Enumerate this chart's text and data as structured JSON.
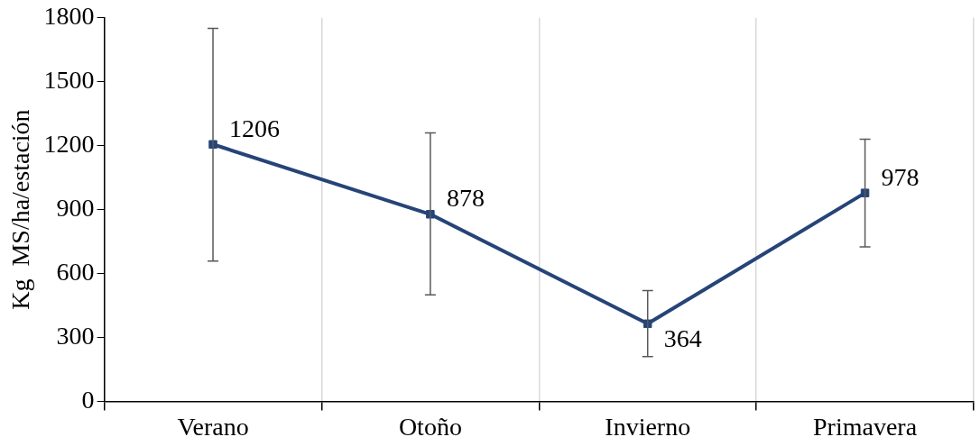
{
  "chart_data": {
    "type": "line",
    "ylabel": "Kg  MS/ha/estación",
    "categories": [
      "Verano",
      "Otoño",
      "Invierno",
      "Primavera"
    ],
    "series": [
      {
        "color": "#264478",
        "values": [
          1206,
          878,
          364,
          978
        ],
        "errors": [
          [
            658,
            1750
          ],
          [
            500,
            1260
          ],
          [
            210,
            520
          ],
          [
            725,
            1230
          ]
        ]
      }
    ],
    "ylim": [
      0,
      1800
    ],
    "yticks": [
      0,
      300,
      600,
      900,
      1200,
      1500,
      1800
    ],
    "grid": "x",
    "marker": "square",
    "line_style": "solid",
    "data_labels": true,
    "legend": false
  }
}
